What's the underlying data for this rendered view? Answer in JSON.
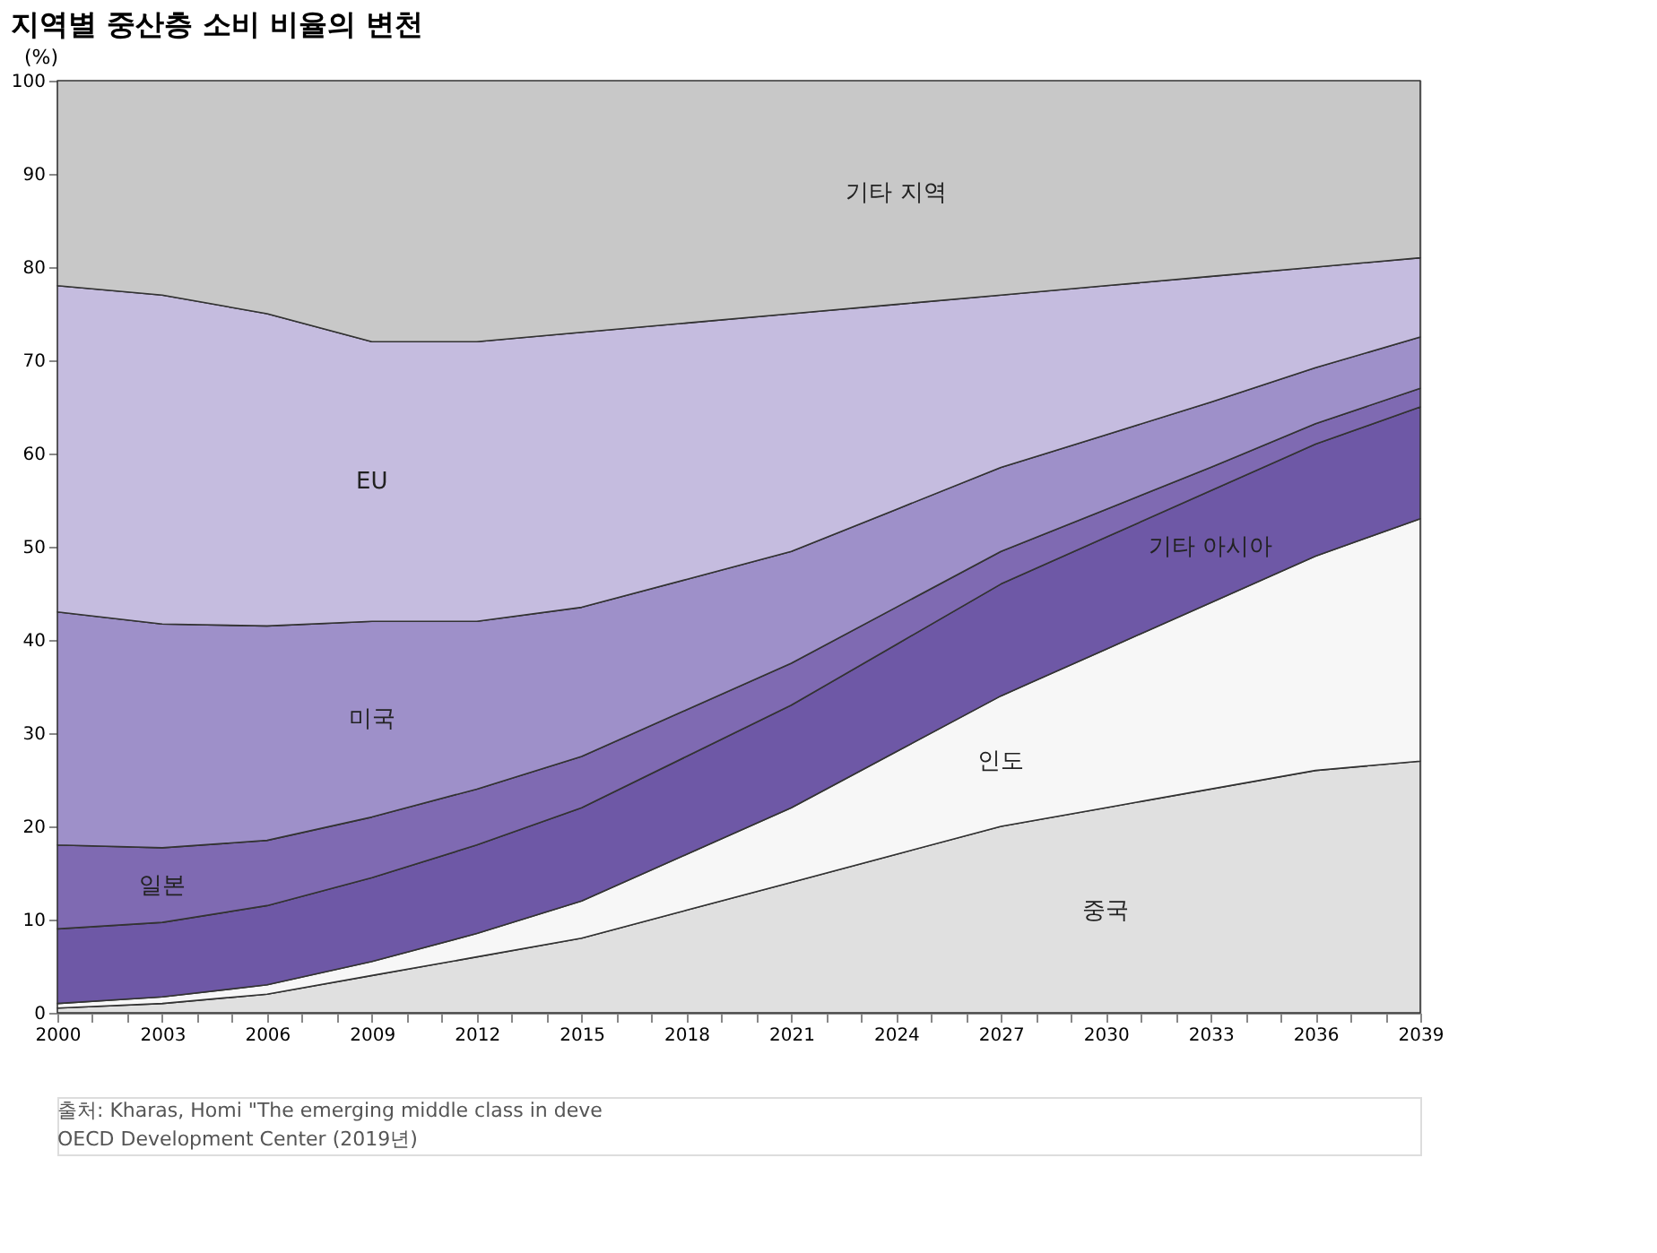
{
  "chart_data": {
    "type": "area",
    "stacked": true,
    "title": "지역별 중산층 소비 비율의 변천",
    "ylabel": "(%)",
    "x": [
      2000,
      2003,
      2006,
      2009,
      2012,
      2015,
      2018,
      2021,
      2024,
      2027,
      2030,
      2033,
      2036,
      2039
    ],
    "series": [
      {
        "name": "중국",
        "color": "#e0e0e0",
        "values": [
          0.5,
          1,
          2,
          4,
          6,
          8,
          11,
          14,
          17,
          20,
          22,
          24,
          26,
          27
        ]
      },
      {
        "name": "인도",
        "color": "#f7f7f7",
        "values": [
          0.5,
          0.7,
          1,
          1.5,
          2.5,
          4,
          6,
          8,
          11,
          14,
          17,
          20,
          23,
          26
        ]
      },
      {
        "name": "기타 아시아",
        "color": "#6e58a6",
        "values": [
          8,
          8,
          8.5,
          9,
          9.5,
          10,
          10.5,
          11,
          11.5,
          12,
          12,
          12,
          12,
          12
        ]
      },
      {
        "name": "일본",
        "color": "#7f6ab2",
        "values": [
          9,
          8,
          7,
          6.5,
          6,
          5.5,
          5,
          4.5,
          4,
          3.5,
          3,
          2.5,
          2.2,
          2
        ]
      },
      {
        "name": "미국",
        "color": "#9e90c9",
        "values": [
          25,
          24,
          23,
          21,
          18,
          16,
          14,
          12,
          10.5,
          9,
          8,
          7,
          6,
          5.5
        ]
      },
      {
        "name": "EU",
        "color": "#c5bcdf",
        "values": [
          35,
          35.3,
          33.5,
          30,
          30,
          29.5,
          27.5,
          25.5,
          22,
          18.5,
          16,
          13.5,
          10.8,
          8.5
        ]
      },
      {
        "name": "기타 지역",
        "color": "#c8c8c8",
        "values": [
          22,
          23,
          25,
          28,
          28,
          27,
          26,
          25,
          24,
          23,
          22,
          21,
          20,
          19
        ]
      }
    ],
    "xlim": [
      2000,
      2039
    ],
    "ylim": [
      0,
      100
    ],
    "yticks": [
      0,
      10,
      20,
      30,
      40,
      50,
      60,
      70,
      80,
      90,
      100
    ],
    "xticks": [
      2000,
      {
        "value": 2001,
        "label": null
      },
      {
        "value": 2002,
        "label": null
      },
      2003,
      {
        "value": 2004,
        "label": null
      },
      {
        "value": 2005,
        "label": null
      },
      2006,
      {
        "value": 2007,
        "label": null
      },
      {
        "value": 2008,
        "label": null
      },
      2009,
      {
        "value": 2010,
        "label": null
      },
      {
        "value": 2011,
        "label": null
      },
      2012,
      {
        "value": 2013,
        "label": null
      },
      {
        "value": 2014,
        "label": null
      },
      2015,
      {
        "value": 2016,
        "label": null
      },
      {
        "value": 2017,
        "label": null
      },
      2018,
      {
        "value": 2019,
        "label": null
      },
      {
        "value": 2020,
        "label": null
      },
      2021,
      {
        "value": 2022,
        "label": null
      },
      {
        "value": 2023,
        "label": null
      },
      2024,
      {
        "value": 2025,
        "label": null
      },
      {
        "value": 2026,
        "label": null
      },
      2027,
      {
        "value": 2028,
        "label": null
      },
      {
        "value": 2029,
        "label": null
      },
      2030,
      {
        "value": 2031,
        "label": null
      },
      {
        "value": 2032,
        "label": null
      },
      2033,
      {
        "value": 2034,
        "label": null
      },
      {
        "value": 2035,
        "label": null
      },
      2036,
      {
        "value": 2037,
        "label": null
      },
      {
        "value": 2038,
        "label": null
      },
      2039
    ],
    "legend": false,
    "annotations": [
      "출처: Kharas, Homi \"The emerging middle class in deve",
      "OECD Development Center (2019년)"
    ]
  }
}
